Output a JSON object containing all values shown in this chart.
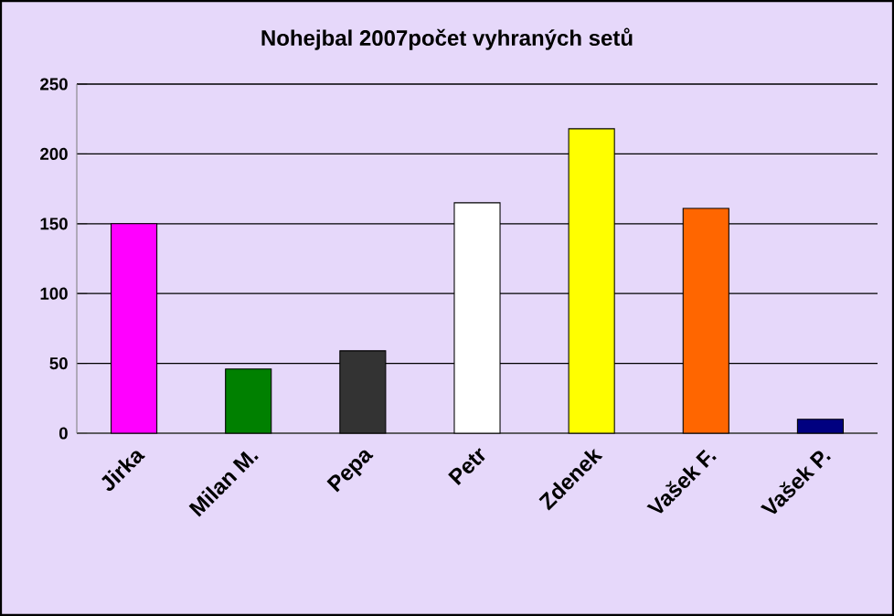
{
  "chart_data": {
    "type": "bar",
    "title": "Nohejbal 2007počet vyhraných setů",
    "categories": [
      "Jirka",
      "Milan M.",
      "Pepa",
      "Petr",
      "Zdenek",
      "Vašek F.",
      "Vašek P."
    ],
    "values": [
      150,
      46,
      59,
      165,
      218,
      161,
      10
    ],
    "colors": [
      "#ff00ff",
      "#008000",
      "#333333",
      "#ffffff",
      "#ffff00",
      "#ff6600",
      "#000080"
    ],
    "ylim": [
      0,
      250
    ],
    "yticks": [
      0,
      50,
      100,
      150,
      200,
      250
    ],
    "grid": "y"
  }
}
